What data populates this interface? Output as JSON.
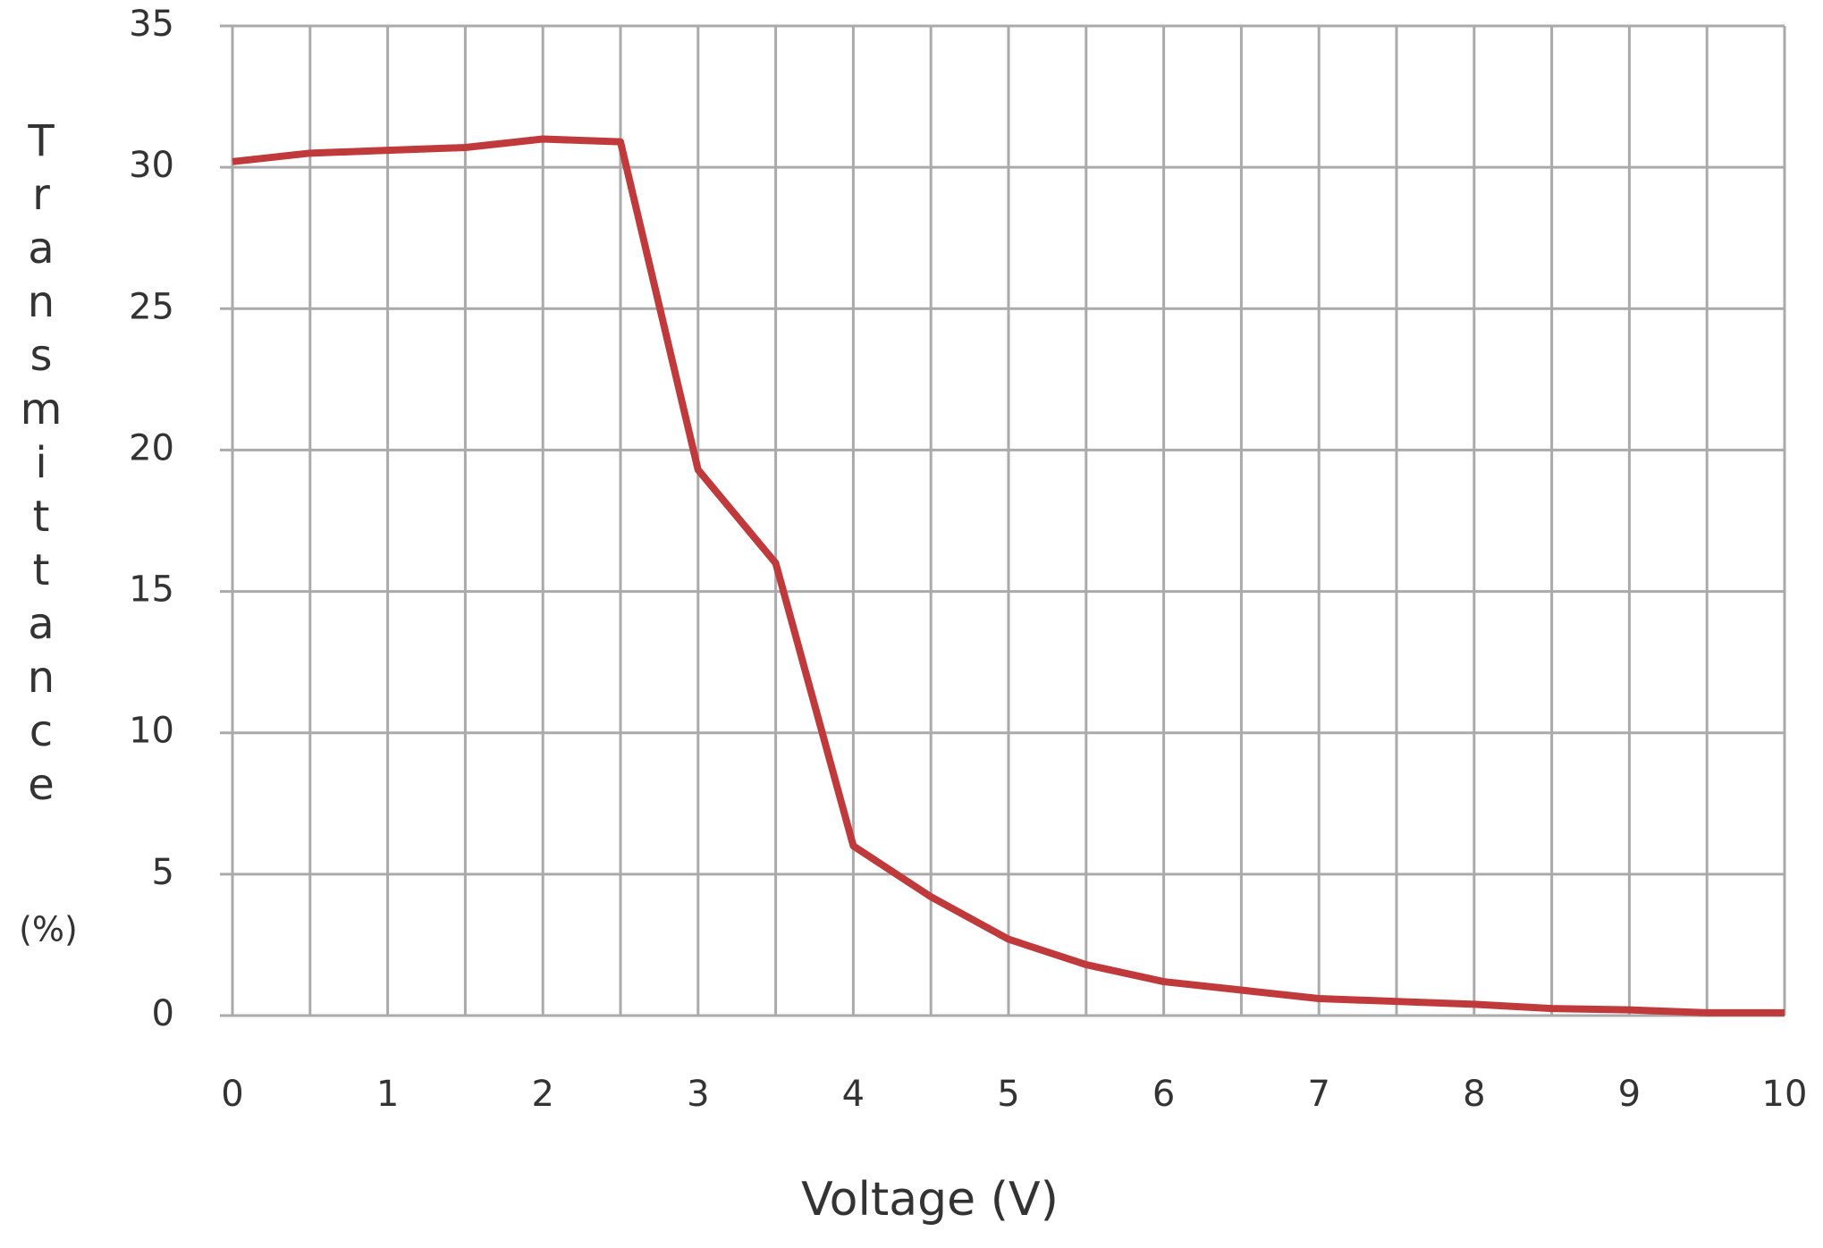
{
  "chart_data": {
    "type": "line",
    "xlabel": "Voltage (V)",
    "ylabel": "Transmittance",
    "ylabel_unit": "(%)",
    "x": [
      0,
      0.5,
      1,
      1.5,
      2,
      2.5,
      3,
      3.5,
      4,
      4.5,
      5,
      5.5,
      6,
      6.5,
      7,
      7.5,
      8,
      8.5,
      9,
      9.5,
      10
    ],
    "series": [
      {
        "name": "Transmittance",
        "color": "#c0393b",
        "values": [
          30.2,
          30.5,
          30.6,
          30.7,
          31.0,
          30.9,
          19.3,
          16.0,
          6.0,
          4.2,
          2.7,
          1.8,
          1.2,
          0.9,
          0.6,
          0.5,
          0.4,
          0.25,
          0.2,
          0.1,
          0.1
        ]
      }
    ],
    "xlim": [
      0,
      10
    ],
    "xticks": [
      0,
      1,
      2,
      3,
      4,
      5,
      6,
      7,
      8,
      9,
      10
    ],
    "x_minor_ticks": [
      0.5,
      1.5,
      2.5,
      3.5,
      4.5,
      5.5,
      6.5,
      7.5,
      8.5,
      9.5
    ],
    "ylim": [
      0,
      35
    ],
    "yticks": [
      0,
      5,
      10,
      15,
      20,
      25,
      30,
      35
    ],
    "grid": true
  }
}
